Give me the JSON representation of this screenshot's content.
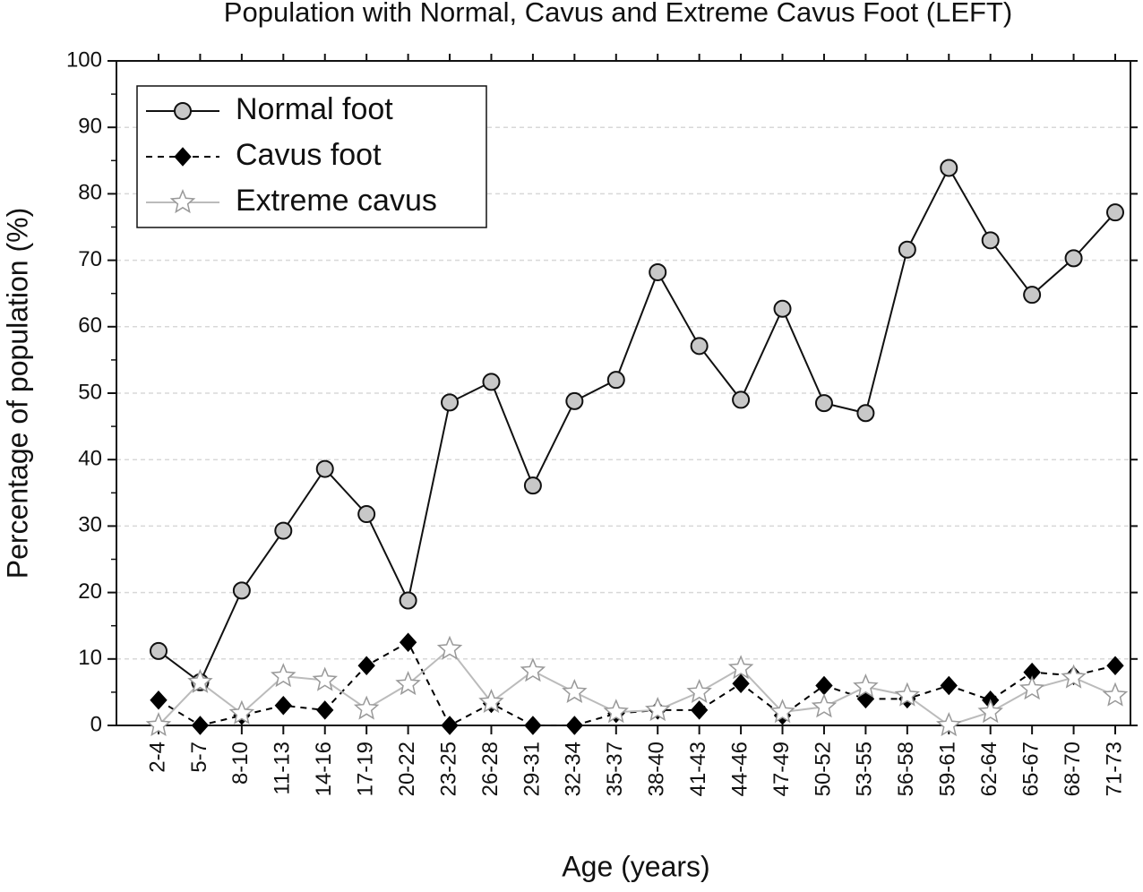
{
  "chart_data": {
    "type": "line",
    "title": "Population with Normal, Cavus and Extreme Cavus Foot (LEFT)",
    "x_label": "Age (years)",
    "y_label": "Percentage of population (%)",
    "categories": [
      "2-4",
      "5-7",
      "8-10",
      "11-13",
      "14-16",
      "17-19",
      "20-22",
      "23-25",
      "26-28",
      "29-31",
      "32-34",
      "35-37",
      "38-40",
      "41-43",
      "44-46",
      "47-49",
      "50-52",
      "53-55",
      "56-58",
      "59-61",
      "62-64",
      "65-67",
      "68-70",
      "71-73"
    ],
    "series": [
      {
        "name": "Normal foot",
        "color": "#111111",
        "marker": "circle",
        "marker_fill": "#c8c8c8",
        "linestyle": "solid",
        "values": [
          11.2,
          6.5,
          20.3,
          29.3,
          38.6,
          31.8,
          18.8,
          48.6,
          51.7,
          36.1,
          48.8,
          52.0,
          68.2,
          57.1,
          49.0,
          62.7,
          48.5,
          47.0,
          71.6,
          83.9,
          73.0,
          64.8,
          70.3,
          77.2
        ]
      },
      {
        "name": "Cavus foot",
        "color": "#000000",
        "marker": "diamond",
        "marker_fill": "#000000",
        "linestyle": "dashed",
        "values": [
          3.8,
          0,
          1.5,
          3.0,
          2.3,
          9.0,
          12.5,
          0,
          3.3,
          0,
          0,
          1.8,
          2.3,
          2.3,
          6.3,
          1.5,
          6.0,
          4.0,
          4.0,
          6.0,
          3.8,
          8.0,
          7.5,
          9.0
        ]
      },
      {
        "name": "Extreme cavus",
        "color": "#bbbbbb",
        "marker": "star",
        "marker_fill": "#ffffff",
        "linestyle": "solid",
        "values": [
          0,
          6.5,
          1.8,
          7.4,
          6.8,
          2.5,
          6.2,
          11.5,
          3.5,
          8.2,
          5.0,
          2.0,
          2.3,
          5.0,
          8.6,
          2.0,
          2.8,
          5.8,
          4.5,
          0,
          2.0,
          5.5,
          7.2,
          4.5
        ]
      }
    ],
    "ylim": [
      0,
      100
    ],
    "yticks": [
      0,
      10,
      20,
      30,
      40,
      50,
      60,
      70,
      80,
      90,
      100
    ],
    "grid": true,
    "legend": "upper left"
  }
}
